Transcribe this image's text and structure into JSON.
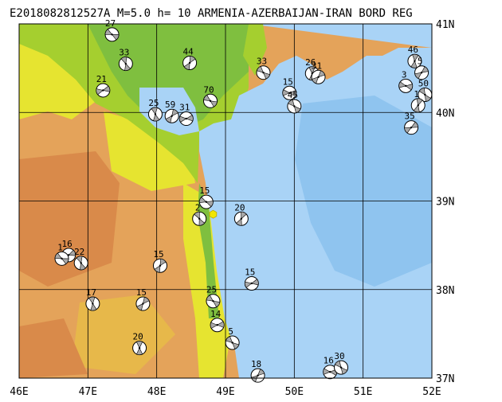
{
  "title": "E2018082812527A M=5.0 h= 10 ARMENIA-AZERBAIJAN-IRAN BORD REG",
  "colors": {
    "sea_deep": "#8fc4ef",
    "sea_shallow": "#a9d3f6",
    "lowland_green": "#7fbf3f",
    "green2": "#a5cf2f",
    "yellow": "#e6e430",
    "orange_low": "#e7b84a",
    "orange_mid": "#e4a35a",
    "orange_high": "#d98a4a",
    "grid": "#000000",
    "event_marker": "#f2e600"
  },
  "axes": {
    "lon_labels": [
      "46E",
      "47E",
      "48E",
      "49E",
      "50E",
      "51E",
      "52E"
    ],
    "lat_labels": [
      "41N",
      "40N",
      "39N",
      "38N",
      "37N"
    ]
  },
  "mechanisms": [
    {
      "depth": "27",
      "lon": 47.35,
      "lat": 40.88
    },
    {
      "depth": "33",
      "lon": 47.55,
      "lat": 40.55
    },
    {
      "depth": "44",
      "lon": 48.48,
      "lat": 40.56
    },
    {
      "depth": "21",
      "lon": 47.22,
      "lat": 40.25
    },
    {
      "depth": "70",
      "lon": 48.78,
      "lat": 40.13
    },
    {
      "depth": "25",
      "lon": 47.98,
      "lat": 39.98
    },
    {
      "depth": "59",
      "lon": 48.22,
      "lat": 39.96
    },
    {
      "depth": "31",
      "lon": 48.43,
      "lat": 39.93
    },
    {
      "depth": "33",
      "lon": 49.55,
      "lat": 40.45
    },
    {
      "depth": "26",
      "lon": 50.26,
      "lat": 40.44
    },
    {
      "depth": "31",
      "lon": 50.35,
      "lat": 40.4
    },
    {
      "depth": "15",
      "lon": 49.93,
      "lat": 40.22
    },
    {
      "depth": "45",
      "lon": 50.0,
      "lat": 40.07
    },
    {
      "depth": "46",
      "lon": 51.75,
      "lat": 40.58
    },
    {
      "depth": "5",
      "lon": 51.85,
      "lat": 40.45
    },
    {
      "depth": "3",
      "lon": 51.62,
      "lat": 40.3
    },
    {
      "depth": "50",
      "lon": 51.9,
      "lat": 40.2
    },
    {
      "depth": "1",
      "lon": 51.8,
      "lat": 40.08
    },
    {
      "depth": "35",
      "lon": 51.7,
      "lat": 39.83
    },
    {
      "depth": "15",
      "lon": 48.72,
      "lat": 38.99
    },
    {
      "depth": "2",
      "lon": 48.62,
      "lat": 38.8
    },
    {
      "depth": "20",
      "lon": 49.23,
      "lat": 38.8
    },
    {
      "depth": "16",
      "lon": 46.72,
      "lat": 38.39
    },
    {
      "depth": "1",
      "lon": 46.62,
      "lat": 38.35
    },
    {
      "depth": "22",
      "lon": 46.9,
      "lat": 38.3
    },
    {
      "depth": "15",
      "lon": 48.05,
      "lat": 38.27
    },
    {
      "depth": "15",
      "lon": 49.38,
      "lat": 38.07
    },
    {
      "depth": "25",
      "lon": 48.82,
      "lat": 37.87
    },
    {
      "depth": "17",
      "lon": 47.07,
      "lat": 37.84
    },
    {
      "depth": "15",
      "lon": 47.8,
      "lat": 37.84
    },
    {
      "depth": "14",
      "lon": 48.88,
      "lat": 37.6
    },
    {
      "depth": "5",
      "lon": 49.1,
      "lat": 37.4
    },
    {
      "depth": "20",
      "lon": 47.75,
      "lat": 37.34
    },
    {
      "depth": "18",
      "lon": 49.47,
      "lat": 37.03
    },
    {
      "depth": "16",
      "lon": 50.52,
      "lat": 37.07
    },
    {
      "depth": "30",
      "lon": 50.68,
      "lat": 37.12
    }
  ],
  "event": {
    "lon": 48.82,
    "lat": 38.85
  }
}
